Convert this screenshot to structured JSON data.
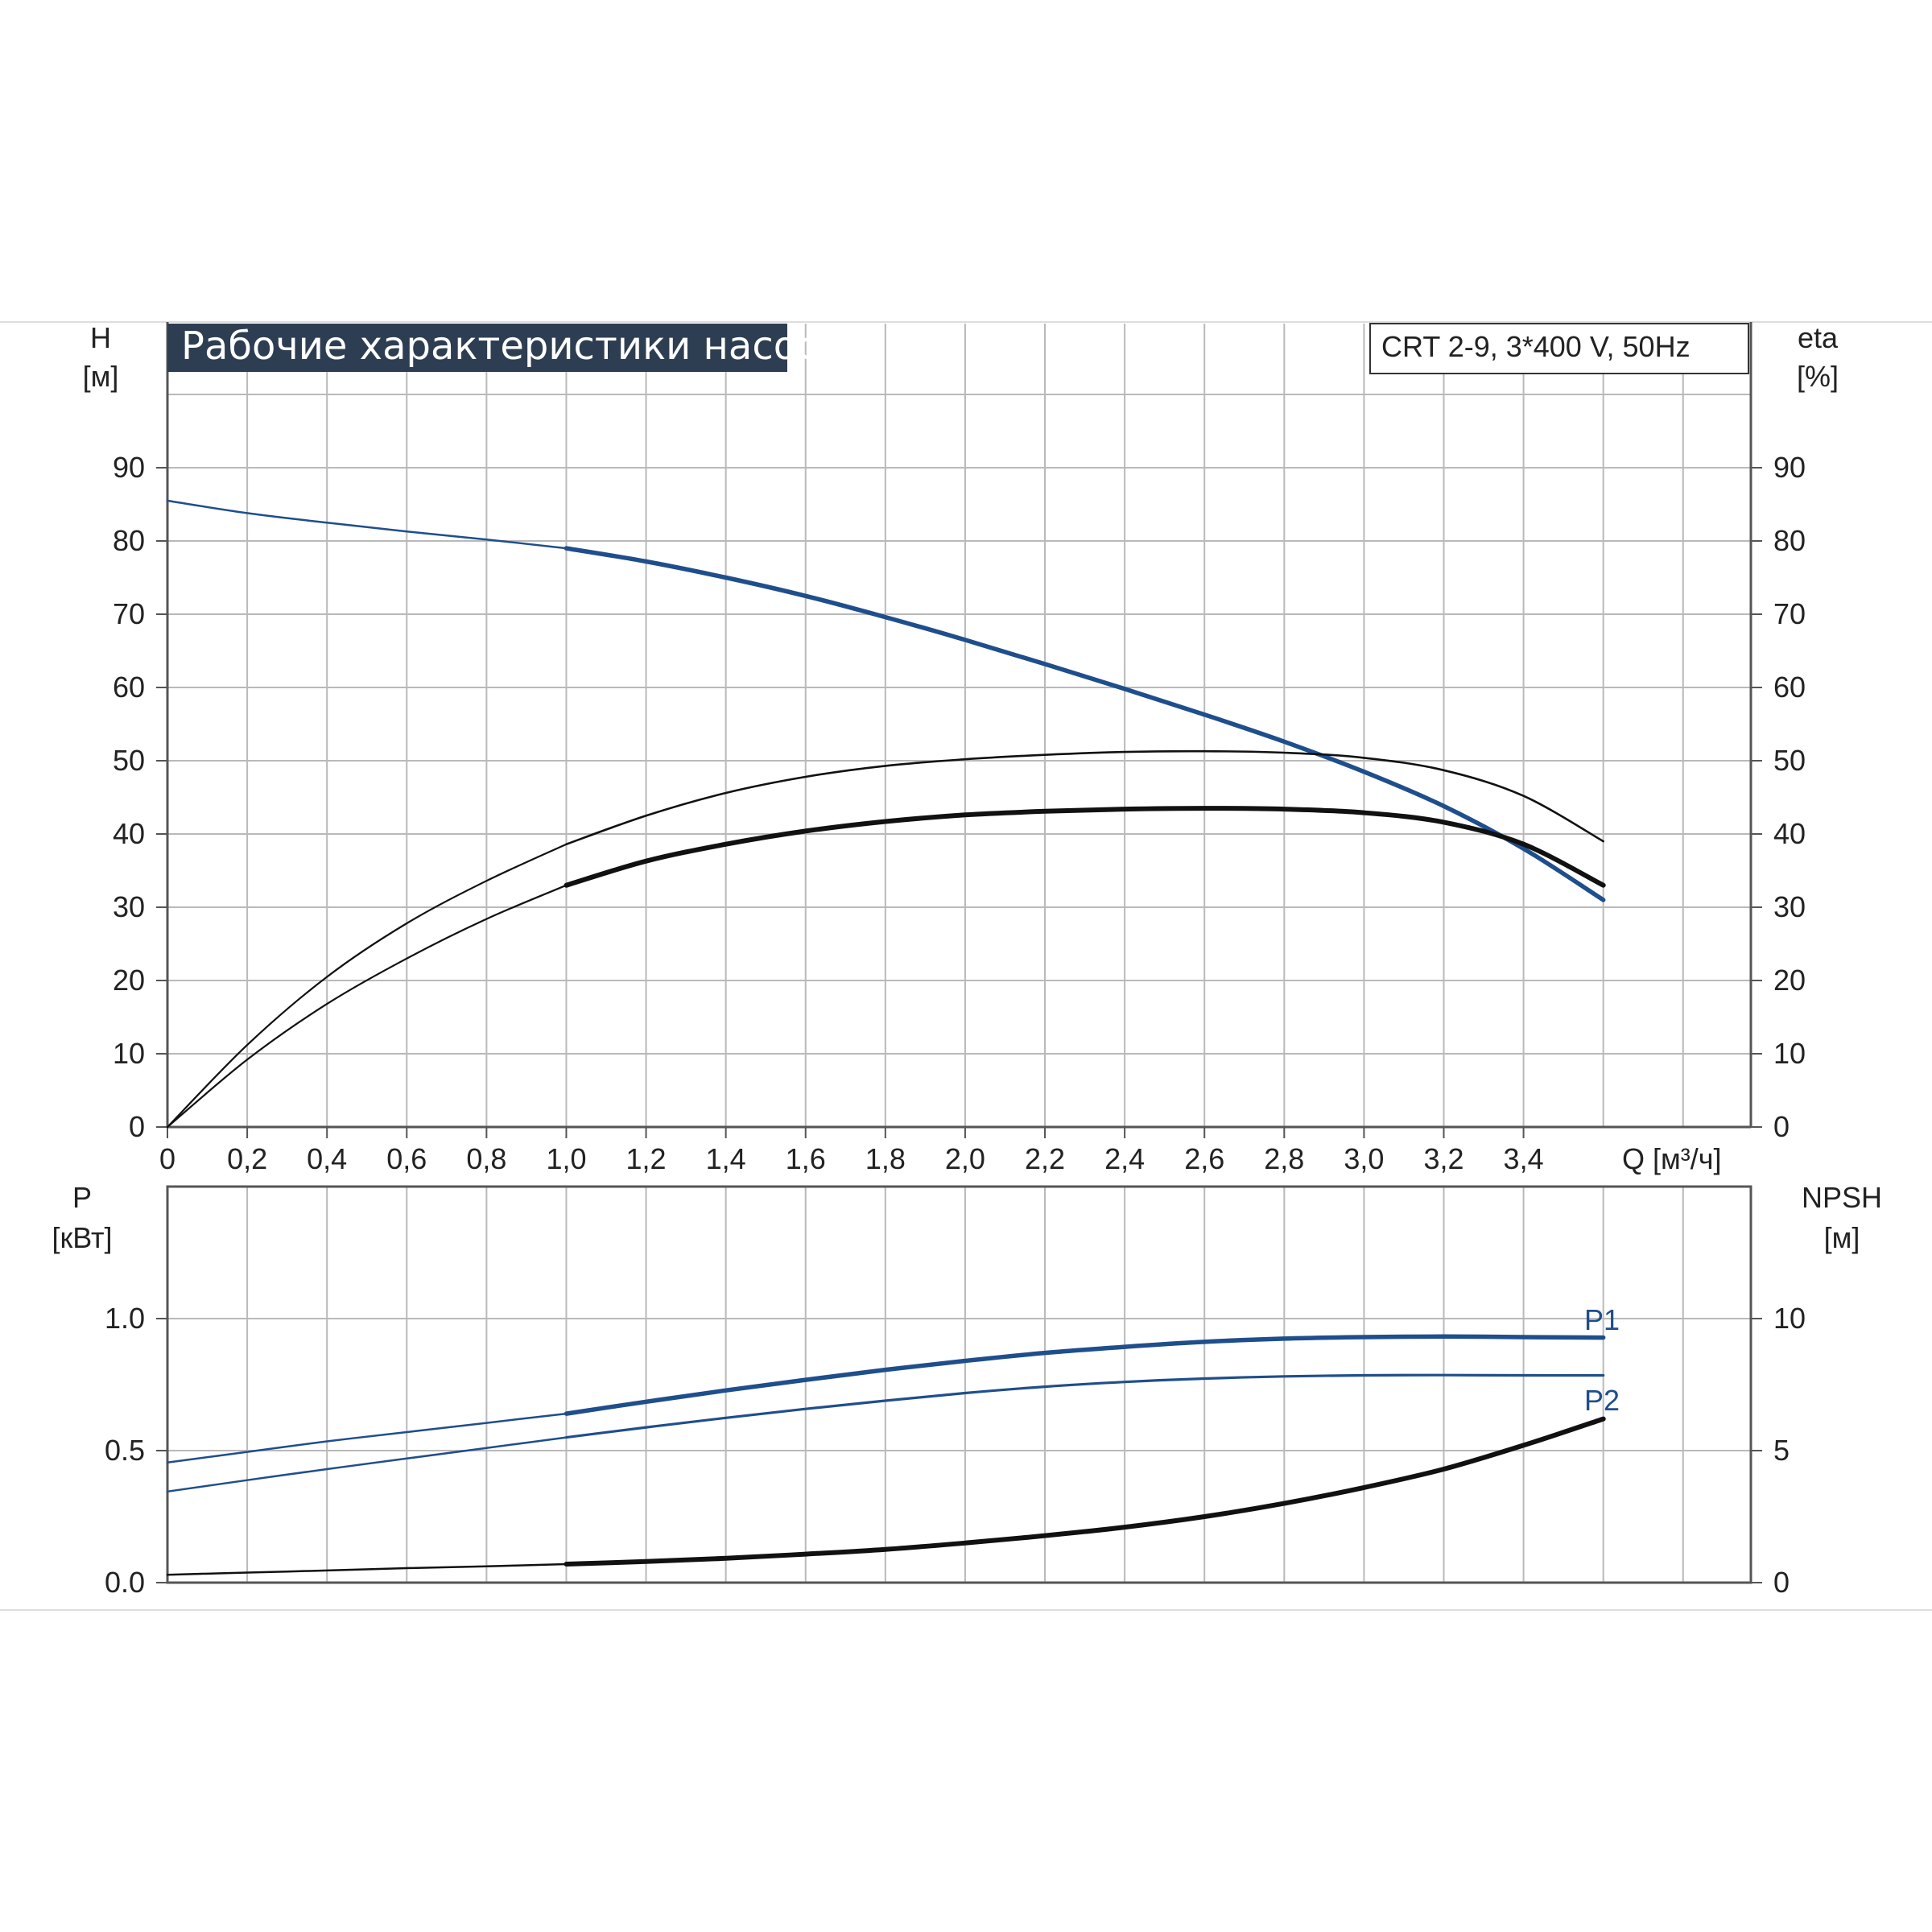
{
  "chart_data": [
    {
      "type": "line",
      "title": "Рабочие характеристики насоса",
      "model_label": "CRT 2-9, 3*400 V, 50Hz",
      "x_label": "Q [м³/ч]",
      "y_left_label_top": "H",
      "y_left_label_unit": "[м]",
      "y_right_label_top": "eta",
      "y_right_label_unit": "[%]",
      "x_ticks": [
        "0",
        "0,2",
        "0,4",
        "0,6",
        "0,8",
        "1,0",
        "1,2",
        "1,4",
        "1,6",
        "1,8",
        "2,0",
        "2,2",
        "2,4",
        "2,6",
        "2,8",
        "3,0",
        "3,2",
        "3,4"
      ],
      "x_tick_values": [
        0,
        0.2,
        0.4,
        0.6,
        0.8,
        1.0,
        1.2,
        1.4,
        1.6,
        1.8,
        2.0,
        2.2,
        2.4,
        2.6,
        2.8,
        3.0,
        3.2,
        3.4
      ],
      "xlim": [
        0,
        3.97
      ],
      "y_ticks": [
        "0",
        "10",
        "20",
        "30",
        "40",
        "50",
        "60",
        "70",
        "80",
        "90"
      ],
      "y_tick_values": [
        0,
        10,
        20,
        30,
        40,
        50,
        60,
        70,
        80,
        90
      ],
      "ylim": [
        0,
        100
      ],
      "grid": true,
      "series": [
        {
          "color": "#1f4e8c",
          "x": [
            0,
            0.2,
            0.4,
            0.6,
            0.8,
            1.0,
            1.2,
            1.4,
            1.6,
            1.8,
            2.0,
            2.2,
            2.4,
            2.6,
            2.8,
            3.0,
            3.2,
            3.4,
            3.6
          ],
          "y": [
            85.5,
            83.8,
            82.5,
            81.3,
            80.2,
            79.0,
            77.2,
            75.0,
            72.5,
            69.6,
            66.5,
            63.2,
            59.8,
            56.3,
            52.6,
            48.5,
            43.8,
            38.0,
            31.0
          ]
        },
        {
          "color": "#111111",
          "x": [
            0,
            0.2,
            0.4,
            0.6,
            0.8,
            1.0,
            1.2,
            1.4,
            1.6,
            1.8,
            2.0,
            2.2,
            2.4,
            2.6,
            2.8,
            3.0,
            3.2,
            3.4,
            3.6
          ],
          "y": [
            0,
            11.2,
            20.5,
            27.8,
            33.6,
            38.6,
            42.5,
            45.6,
            47.8,
            49.3,
            50.2,
            50.8,
            51.2,
            51.3,
            51.1,
            50.4,
            48.7,
            45.2,
            39.0
          ]
        },
        {
          "color": "#111111",
          "x": [
            0,
            0.2,
            0.4,
            0.6,
            0.8,
            1.0,
            1.2,
            1.4,
            1.6,
            1.8,
            2.0,
            2.2,
            2.4,
            2.6,
            2.8,
            3.0,
            3.2,
            3.4,
            3.6
          ],
          "y": [
            0,
            9.2,
            16.8,
            23.0,
            28.4,
            33.0,
            36.3,
            38.6,
            40.4,
            41.7,
            42.6,
            43.1,
            43.4,
            43.5,
            43.4,
            42.9,
            41.6,
            38.6,
            33.0
          ]
        }
      ]
    },
    {
      "type": "line",
      "y_left_label_top": "P",
      "y_left_label_unit": "[кВт]",
      "y_right_label_top": "NPSH",
      "y_right_label_unit": "[м]",
      "xlim": [
        0,
        3.97
      ],
      "y_ticks": [
        "0.0",
        "0.5",
        "1.0"
      ],
      "y_tick_values": [
        0,
        0.5,
        1.0
      ],
      "ylim": [
        0,
        1.5
      ],
      "y_right_ticks": [
        "0",
        "5",
        "10"
      ],
      "y_right_tick_values": [
        0,
        5,
        10
      ],
      "y_right_lim": [
        0,
        15
      ],
      "grid": true,
      "series": [
        {
          "name": "P1",
          "color": "#1f4e8c",
          "x": [
            0,
            0.2,
            0.4,
            0.6,
            0.8,
            1.0,
            1.2,
            1.4,
            1.6,
            1.8,
            2.0,
            2.2,
            2.4,
            2.6,
            2.8,
            3.0,
            3.2,
            3.4,
            3.6
          ],
          "y": [
            0.455,
            0.495,
            0.535,
            0.57,
            0.605,
            0.64,
            0.685,
            0.728,
            0.768,
            0.806,
            0.84,
            0.87,
            0.893,
            0.912,
            0.924,
            0.93,
            0.932,
            0.93,
            0.928
          ]
        },
        {
          "name": "P2",
          "color": "#1f4e8c",
          "x": [
            0,
            0.2,
            0.4,
            0.6,
            0.8,
            1.0,
            1.2,
            1.4,
            1.6,
            1.8,
            2.0,
            2.2,
            2.4,
            2.6,
            2.8,
            3.0,
            3.2,
            3.4,
            3.6
          ],
          "y": [
            0.345,
            0.388,
            0.43,
            0.47,
            0.51,
            0.55,
            0.588,
            0.624,
            0.658,
            0.689,
            0.718,
            0.742,
            0.76,
            0.773,
            0.781,
            0.785,
            0.786,
            0.785,
            0.785
          ]
        },
        {
          "color": "#111111",
          "axis": "right",
          "x": [
            0,
            0.2,
            0.4,
            0.6,
            0.8,
            1.0,
            1.2,
            1.4,
            1.6,
            1.8,
            2.0,
            2.2,
            2.4,
            2.6,
            2.8,
            3.0,
            3.2,
            3.4,
            3.6
          ],
          "y": [
            0.3,
            0.38,
            0.46,
            0.55,
            0.62,
            0.7,
            0.8,
            0.92,
            1.08,
            1.26,
            1.5,
            1.78,
            2.1,
            2.5,
            3.0,
            3.6,
            4.3,
            5.2,
            6.2
          ]
        }
      ]
    }
  ]
}
